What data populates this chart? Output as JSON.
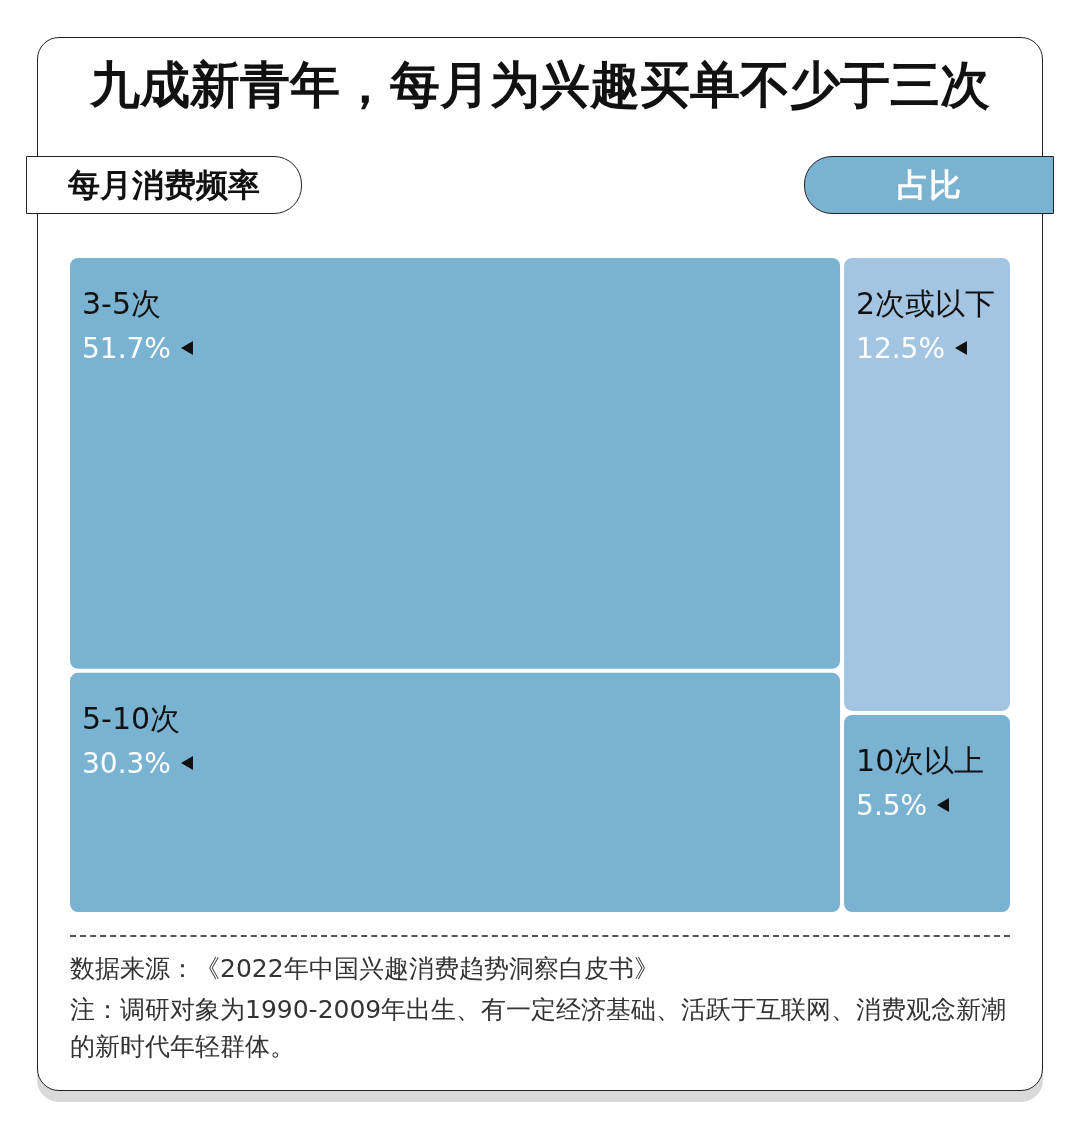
{
  "chart_data": {
    "type": "other",
    "title": "九成新青年，每月为兴趣买单不少于三次",
    "xlabel": "每月消费频率",
    "ylabel": "占比",
    "categories": [
      "3-5次",
      "5-10次",
      "2次或以下",
      "10次以上"
    ],
    "values": [
      51.7,
      30.3,
      12.5,
      5.5
    ],
    "value_labels": [
      "51.7%",
      "30.3%",
      "12.5%",
      "5.5%"
    ],
    "colors": [
      "#7ab3d1",
      "#7ab3d1",
      "#a3c5e2",
      "#7ab3d1"
    ],
    "annotations": [
      "数据来源：《2022年中国兴趣消费趋势洞察白皮书》",
      "注：调研对象为1990-2009年出生、有一定经济基础、活跃于互联网、消费观念新潮的新时代年轻群体。"
    ]
  }
}
